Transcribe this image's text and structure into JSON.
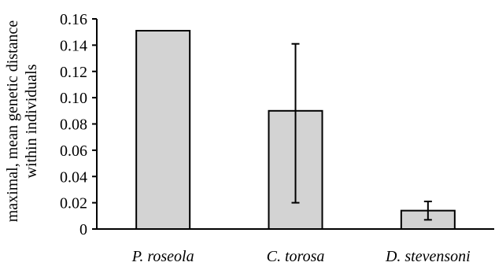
{
  "chart_data": {
    "type": "bar",
    "title": "",
    "xlabel": "",
    "ylabel_lines": [
      "maximal, mean genetic distance",
      "within individuals"
    ],
    "categories": [
      "P. roseola",
      "C. torosa",
      "D. stevensoni"
    ],
    "values": [
      0.151,
      0.09,
      0.014
    ],
    "error_bars": [
      null,
      {
        "low": 0.02,
        "high": 0.141
      },
      {
        "low": 0.007,
        "high": 0.021
      }
    ],
    "ylim": [
      0,
      0.16
    ],
    "yticks": [
      0,
      0.02,
      0.04,
      0.06,
      0.08,
      0.1,
      0.12,
      0.14,
      0.16
    ],
    "ytick_labels": [
      "0",
      "0.02",
      "0.04",
      "0.06",
      "0.08",
      "0.10",
      "0.12",
      "0.14",
      "0.16"
    ],
    "grid": false,
    "legend": "none",
    "colors": {
      "bar_fill": "#d3d3d3",
      "bar_stroke": "#000000",
      "axis": "#000000",
      "error_bar": "#000000"
    }
  }
}
